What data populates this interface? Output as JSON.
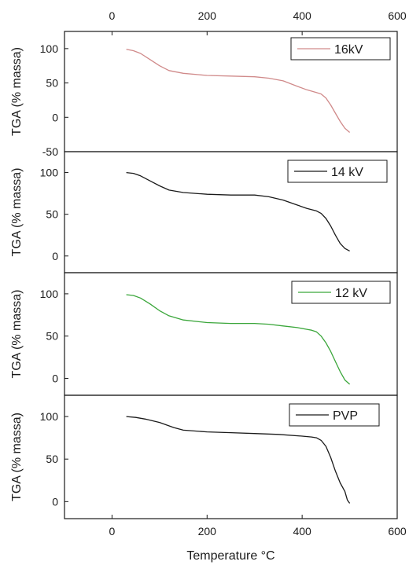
{
  "chart_data": [
    {
      "type": "line",
      "ylabel": "TGA (% massa)",
      "xlim": [
        -100,
        600
      ],
      "ylim": [
        -50,
        125
      ],
      "yticks": [
        -50,
        0,
        50,
        100
      ],
      "xticks_top": [
        0,
        200,
        400,
        600
      ],
      "legend_position": "top-right",
      "series": [
        {
          "name": "16kV",
          "color": "#d08a8a",
          "x": [
            30,
            45,
            60,
            80,
            100,
            120,
            150,
            200,
            250,
            300,
            330,
            360,
            390,
            410,
            430,
            440,
            450,
            460,
            470,
            480,
            490,
            500
          ],
          "y": [
            99,
            97,
            93,
            84,
            75,
            68,
            64,
            61,
            60,
            59,
            57,
            53,
            45,
            40,
            36,
            34,
            28,
            18,
            6,
            -6,
            -16,
            -22
          ]
        }
      ]
    },
    {
      "type": "line",
      "ylabel": "TGA (% massa)",
      "xlim": [
        -100,
        600
      ],
      "ylim": [
        -20,
        125
      ],
      "yticks": [
        0,
        50,
        100
      ],
      "legend_position": "top-right",
      "series": [
        {
          "name": "14 kV",
          "color": "#1a1a1a",
          "x": [
            30,
            45,
            60,
            80,
            100,
            120,
            150,
            200,
            250,
            300,
            330,
            360,
            390,
            410,
            430,
            440,
            450,
            460,
            470,
            480,
            490,
            500
          ],
          "y": [
            100,
            99,
            96,
            90,
            84,
            79,
            76,
            74,
            73,
            73,
            71,
            67,
            61,
            57,
            54,
            51,
            45,
            36,
            25,
            15,
            9,
            6
          ]
        }
      ]
    },
    {
      "type": "line",
      "ylabel": "TGA (% massa)",
      "xlim": [
        -100,
        600
      ],
      "ylim": [
        -20,
        125
      ],
      "yticks": [
        0,
        50,
        100
      ],
      "legend_position": "top-right",
      "series": [
        {
          "name": "12 kV",
          "color": "#3aa63a",
          "x": [
            30,
            45,
            60,
            80,
            100,
            120,
            150,
            200,
            250,
            300,
            330,
            360,
            390,
            410,
            420,
            430,
            440,
            450,
            460,
            470,
            480,
            490,
            500
          ],
          "y": [
            99,
            98,
            95,
            88,
            80,
            74,
            69,
            66,
            65,
            65,
            64,
            62,
            60,
            58,
            57,
            55,
            50,
            42,
            32,
            20,
            8,
            -2,
            -7
          ]
        }
      ]
    },
    {
      "type": "line",
      "ylabel": "TGA (% massa)",
      "xlabel": "Temperature °C",
      "xlim": [
        -100,
        600
      ],
      "ylim": [
        -20,
        125
      ],
      "yticks": [
        0,
        50,
        100
      ],
      "xticks": [
        0,
        200,
        400,
        600
      ],
      "legend_position": "top-right",
      "series": [
        {
          "name": "PVP",
          "color": "#1a1a1a",
          "x": [
            30,
            50,
            70,
            100,
            130,
            150,
            200,
            250,
            300,
            350,
            400,
            420,
            430,
            440,
            450,
            460,
            470,
            480,
            490,
            495,
            500
          ],
          "y": [
            100,
            99,
            97,
            93,
            87,
            84,
            82,
            81,
            80,
            79,
            77,
            76,
            75,
            72,
            65,
            52,
            36,
            22,
            12,
            2,
            -2
          ]
        }
      ]
    }
  ]
}
